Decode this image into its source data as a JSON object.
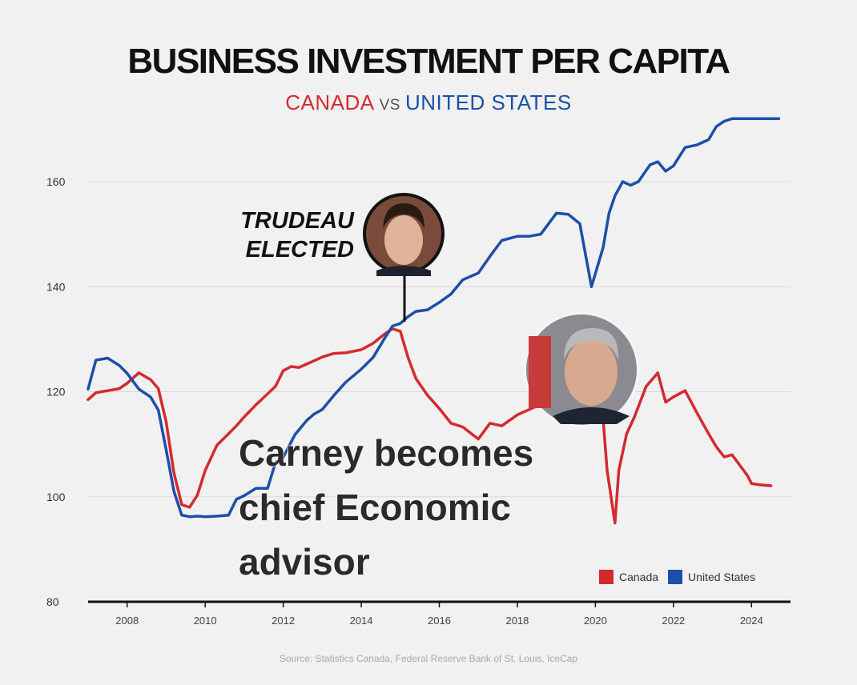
{
  "chart_data": {
    "type": "line",
    "title": "BUSINESS INVESTMENT PER CAPITA",
    "subtitle": {
      "left": "CANADA",
      "mid": "VS",
      "right": "UNITED STATES"
    },
    "xlabel": "",
    "ylabel": "",
    "xlim": [
      2007,
      2024.8
    ],
    "ylim": [
      80,
      172
    ],
    "x_ticks": [
      2008,
      2010,
      2012,
      2014,
      2016,
      2018,
      2020,
      2022,
      2024
    ],
    "y_ticks": [
      80,
      100,
      120,
      140,
      160
    ],
    "grid": true,
    "legend_position": "bottom-right",
    "series": [
      {
        "name": "Canada",
        "color": "#d42a2f",
        "x": [
          2007.0,
          2007.2,
          2007.5,
          2007.8,
          2008.0,
          2008.3,
          2008.6,
          2008.8,
          2009.0,
          2009.2,
          2009.4,
          2009.6,
          2009.8,
          2010.0,
          2010.3,
          2010.6,
          2010.8,
          2011.0,
          2011.3,
          2011.6,
          2011.8,
          2012.0,
          2012.2,
          2012.4,
          2012.7,
          2013.0,
          2013.3,
          2013.6,
          2014.0,
          2014.3,
          2014.6,
          2014.8,
          2015.0,
          2015.2,
          2015.4,
          2015.7,
          2016.0,
          2016.3,
          2016.6,
          2017.0,
          2017.3,
          2017.6,
          2018.0,
          2018.3,
          2018.6,
          2019.0,
          2019.3,
          2019.6,
          2019.9,
          2020.2,
          2020.3,
          2020.5,
          2020.6,
          2020.8,
          2021.0,
          2021.3,
          2021.6,
          2021.8,
          2022.0,
          2022.3,
          2022.6,
          2022.9,
          2023.1,
          2023.3,
          2023.5,
          2023.7,
          2023.9,
          2024.0,
          2024.2,
          2024.5
        ],
        "y": [
          118.5,
          119.8,
          120.2,
          120.6,
          121.6,
          123.6,
          122.3,
          120.6,
          114.3,
          104.5,
          98.5,
          98.0,
          100.3,
          105.0,
          109.8,
          112.0,
          113.5,
          115.2,
          117.5,
          119.6,
          121.0,
          124.0,
          124.8,
          124.6,
          125.6,
          126.6,
          127.3,
          127.4,
          128.0,
          129.2,
          131.0,
          132.0,
          131.5,
          126.5,
          122.5,
          119.3,
          116.8,
          114.0,
          113.3,
          111.0,
          114.0,
          113.5,
          115.6,
          116.6,
          117.6,
          115.6,
          117.6,
          118.6,
          117.6,
          114.6,
          105.0,
          95.0,
          105.0,
          112.0,
          115.2,
          121.0,
          123.6,
          118.0,
          119.0,
          120.2,
          116.0,
          112.0,
          109.5,
          107.6,
          108.0,
          106.0,
          104.0,
          102.5,
          102.3,
          102.1
        ]
      },
      {
        "name": "United States",
        "color": "#1c4fa8",
        "x": [
          2007.0,
          2007.2,
          2007.5,
          2007.8,
          2008.0,
          2008.3,
          2008.6,
          2008.8,
          2009.0,
          2009.2,
          2009.4,
          2009.6,
          2009.8,
          2010.0,
          2010.3,
          2010.6,
          2010.8,
          2011.0,
          2011.3,
          2011.6,
          2011.8,
          2012.0,
          2012.3,
          2012.6,
          2012.8,
          2013.0,
          2013.3,
          2013.6,
          2014.0,
          2014.3,
          2014.6,
          2014.8,
          2015.0,
          2015.2,
          2015.4,
          2015.7,
          2016.0,
          2016.3,
          2016.6,
          2017.0,
          2017.3,
          2017.6,
          2018.0,
          2018.3,
          2018.6,
          2019.0,
          2019.3,
          2019.6,
          2019.9,
          2020.2,
          2020.35,
          2020.5,
          2020.7,
          2020.9,
          2021.1,
          2021.4,
          2021.6,
          2021.8,
          2022.0,
          2022.3,
          2022.6,
          2022.9,
          2023.1,
          2023.3,
          2023.5,
          2023.7,
          2023.9,
          2024.1,
          2024.4,
          2024.7
        ],
        "y": [
          120.5,
          126.0,
          126.4,
          125.0,
          123.5,
          120.5,
          119.0,
          116.5,
          109.0,
          101.0,
          96.5,
          96.2,
          96.3,
          96.2,
          96.3,
          96.5,
          99.5,
          100.2,
          101.6,
          101.6,
          106.5,
          107.5,
          111.8,
          114.5,
          115.8,
          116.6,
          119.3,
          121.8,
          124.3,
          126.5,
          130.2,
          132.5,
          133.0,
          134.3,
          135.3,
          135.6,
          137.0,
          138.6,
          141.3,
          142.6,
          145.8,
          148.8,
          149.6,
          149.6,
          150.0,
          154.0,
          153.8,
          152.0,
          140.0,
          147.5,
          154.0,
          157.3,
          160.0,
          159.3,
          160.0,
          163.2,
          163.8,
          162.0,
          163.0,
          166.5,
          167.0,
          168.0,
          170.5,
          171.5,
          172.0,
          172.0,
          172.0,
          172.0,
          172.0,
          172.0
        ]
      }
    ]
  },
  "annotations": {
    "callout_line1": "TRUDEAU",
    "callout_line2": "ELECTED",
    "caption_line1": "Carney becomes",
    "caption_line2": "chief Economic",
    "caption_line3": "advisor"
  },
  "source": "Source: Statistics Canada, Federal Reserve Bank of St. Louis, IceCap"
}
